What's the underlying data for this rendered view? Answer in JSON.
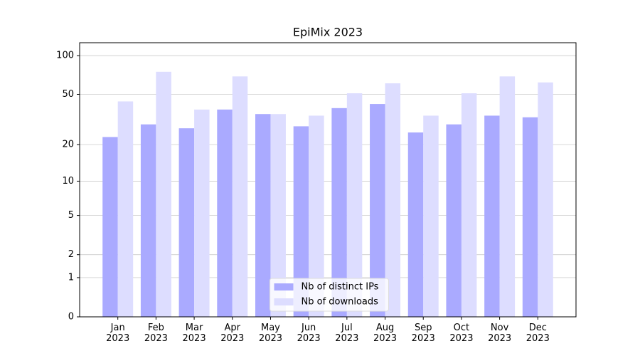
{
  "chart_data": {
    "type": "bar",
    "title": "EpiMix 2023",
    "categories": [
      "Jan\n2023",
      "Feb\n2023",
      "Mar\n2023",
      "Apr\n2023",
      "May\n2023",
      "Jun\n2023",
      "Jul\n2023",
      "Aug\n2023",
      "Sep\n2023",
      "Oct\n2023",
      "Nov\n2023",
      "Dec\n2023"
    ],
    "series": [
      {
        "name": "Nb of distinct IPs",
        "color": "#aaaaff",
        "values": [
          23,
          29,
          27,
          38,
          35,
          28,
          39,
          42,
          25,
          29,
          34,
          33
        ]
      },
      {
        "name": "Nb of downloads",
        "color": "#ddddff",
        "values": [
          44,
          75,
          38,
          69,
          35,
          34,
          51,
          61,
          34,
          51,
          69,
          62
        ]
      }
    ],
    "ylim": [
      0,
      126
    ],
    "yticks": [
      0,
      1,
      2,
      5,
      10,
      20,
      50,
      100
    ],
    "scale": "log1p",
    "grid": true,
    "legend": "lower center"
  }
}
